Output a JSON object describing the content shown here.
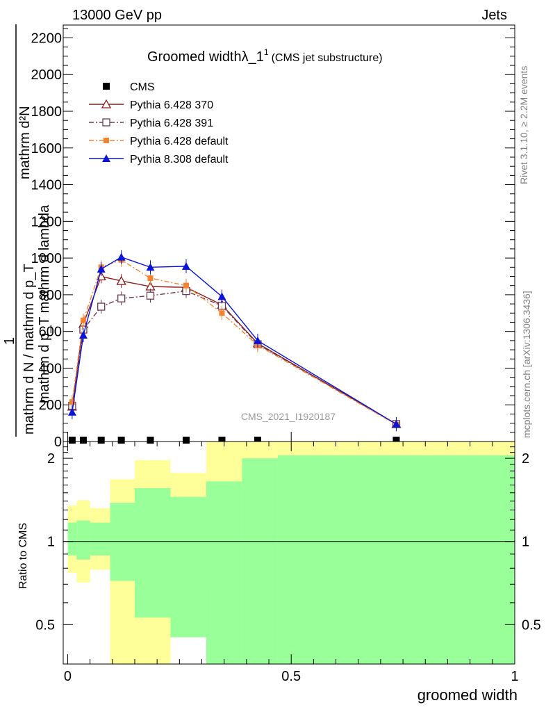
{
  "header": {
    "energy_label": "13000 GeV pp",
    "category_label": "Jets",
    "rivet_label": "Rivet 3.1.10, ≥ 2.2M events",
    "mcplots_label": "mcplots.cern.ch [arXiv:1306.3436]",
    "analysis_id": "CMS_2021_I1920187"
  },
  "chart_data": [
    {
      "type": "line",
      "title": "Groomed widthλ_1",
      "title_sup": "1",
      "subtitle": "(CMS jet substructure)",
      "ylabel_top": "mathrm d²N",
      "ylabel_mid": "mathrm d p_T mathrm d lambda",
      "ylabel_prefix": "1",
      "ylabel_bottom": "mathrm d N / mathrm d p_T",
      "ylim": [
        0,
        2270
      ],
      "xlim": [
        -0.01,
        1.0
      ],
      "y_ticks": [
        "0",
        "200",
        "400",
        "600",
        "800",
        "1000",
        "1200",
        "1400",
        "1600",
        "1800",
        "2000",
        "2200"
      ],
      "legend_position": "top-left",
      "x": [
        0.01,
        0.035,
        0.075,
        0.12,
        0.185,
        0.265,
        0.345,
        0.425,
        0.735
      ],
      "series": [
        {
          "name": "CMS",
          "color": "#000000",
          "marker": "square",
          "values": [
            0,
            0,
            0,
            0,
            0,
            0,
            0,
            0,
            0
          ]
        },
        {
          "name": "Pythia 6.428 370",
          "color": "#8b1a1a",
          "marker": "open-triangle",
          "dash": "solid",
          "values": [
            190,
            640,
            900,
            875,
            845,
            840,
            745,
            535,
            95
          ]
        },
        {
          "name": "Pythia 6.428 391",
          "color": "#6e3a4e",
          "marker": "open-square",
          "dash": "dashdot",
          "values": [
            195,
            610,
            735,
            780,
            795,
            820,
            740,
            530,
            95
          ]
        },
        {
          "name": "Pythia 6.428 default",
          "color": "#f5822e",
          "marker": "filled-square",
          "dash": "dashdot",
          "values": [
            215,
            660,
            950,
            990,
            890,
            850,
            700,
            525,
            92
          ]
        },
        {
          "name": "Pythia 8.308 default",
          "color": "#0a14d8",
          "marker": "filled-triangle",
          "dash": "solid",
          "values": [
            160,
            580,
            940,
            1005,
            950,
            955,
            790,
            550,
            95
          ]
        }
      ]
    },
    {
      "type": "area",
      "ylabel": "Ratio to CMS",
      "xlabel": "groomed width",
      "ylim": [
        0.36,
        2.3
      ],
      "y_ticks": [
        "0.5",
        "1",
        "2"
      ],
      "x_ticks": [
        "0",
        "0.5",
        "1"
      ],
      "bins": [
        {
          "x": [
            0.0,
            0.02
          ],
          "green": [
            0.89,
            1.17
          ],
          "yellow": [
            0.77,
            1.35
          ]
        },
        {
          "x": [
            0.02,
            0.05
          ],
          "green": [
            0.86,
            1.19
          ],
          "yellow": [
            0.71,
            1.41
          ]
        },
        {
          "x": [
            0.05,
            0.095
          ],
          "green": [
            0.89,
            1.17
          ],
          "yellow": [
            0.79,
            1.32
          ]
        },
        {
          "x": [
            0.095,
            0.15
          ],
          "green": [
            0.72,
            1.38
          ],
          "yellow": [
            0.36,
            1.68
          ]
        },
        {
          "x": [
            0.15,
            0.23
          ],
          "green": [
            0.53,
            1.56
          ],
          "yellow": [
            0.36,
            1.97
          ]
        },
        {
          "x": [
            0.23,
            0.31
          ],
          "green": [
            0.45,
            1.45
          ],
          "yellow": [
            0.69,
            1.77
          ]
        },
        {
          "x": [
            0.31,
            0.39
          ],
          "green": [
            0.36,
            1.65
          ],
          "yellow": [
            0.36,
            2.3
          ]
        },
        {
          "x": [
            0.39,
            0.47
          ],
          "green": [
            0.36,
            2.0
          ],
          "yellow": [
            0.36,
            2.3
          ]
        },
        {
          "x": [
            0.47,
            1.0
          ],
          "green": [
            0.36,
            2.05
          ],
          "yellow": [
            0.36,
            2.3
          ]
        }
      ]
    }
  ]
}
